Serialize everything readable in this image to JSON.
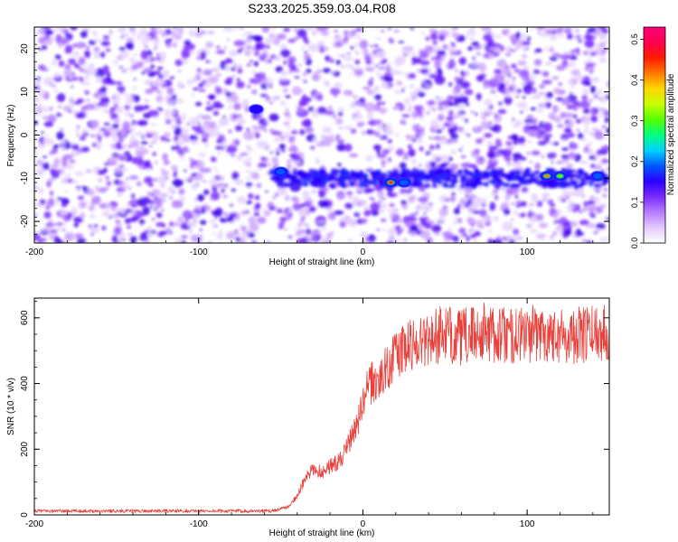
{
  "title": "S233.2025.359.03.04.R08",
  "chart_data": [
    {
      "type": "heatmap",
      "xlabel": "Height of straight line (km)",
      "ylabel": "Frequency (Hz)",
      "xlim": [
        -200,
        150
      ],
      "ylim": [
        -25,
        25
      ],
      "xticks": [
        -200,
        -100,
        0,
        100
      ],
      "yticks": [
        -20,
        -10,
        0,
        10,
        20
      ],
      "colorbar": {
        "label": "Normalized spectral amplitude",
        "range": [
          0.0,
          0.53
        ],
        "ticks": [
          "0.0",
          "0.1",
          "0.2",
          "0.3",
          "0.4",
          "0.5"
        ],
        "colors": [
          "#ffffff",
          "#e3c9ff",
          "#b77cff",
          "#7a2bff",
          "#2a00ff",
          "#0058ff",
          "#00d2ff",
          "#00ff80",
          "#54ff00",
          "#c8ff00",
          "#ffd800",
          "#ff7a00",
          "#ff1a00",
          "#ff0050",
          "#ff007c"
        ]
      },
      "feature": {
        "description_free_values": true,
        "band_frequency_hz": -10,
        "band_start_km": -55,
        "peaks": [
          {
            "x": 17,
            "y": -11,
            "amplitude": 0.5
          },
          {
            "x": 112,
            "y": -9.5,
            "amplitude": 0.48
          },
          {
            "x": 120,
            "y": -9.5,
            "amplitude": 0.32
          },
          {
            "x": 143,
            "y": -9.5,
            "amplitude": 0.22
          },
          {
            "x": 25,
            "y": -11,
            "amplitude": 0.2
          },
          {
            "x": -50,
            "y": -8.5,
            "amplitude": 0.2
          },
          {
            "x": -65,
            "y": 6,
            "amplitude": 0.14
          }
        ]
      }
    },
    {
      "type": "line",
      "xlabel": "Height of straight line (km)",
      "ylabel": "SNR (10 * v/v)",
      "xlim": [
        -200,
        150
      ],
      "ylim": [
        0,
        660
      ],
      "xticks": [
        -200,
        -100,
        0,
        100
      ],
      "yticks": [
        0,
        200,
        400,
        600
      ],
      "color": "#e8413c",
      "series": [
        {
          "name": "SNR",
          "x": [
            -200,
            -150,
            -100,
            -55,
            -45,
            -40,
            -35,
            -30,
            -25,
            -20,
            -15,
            -10,
            -5,
            0,
            2,
            5,
            10,
            15,
            20,
            25,
            30,
            40,
            50,
            60,
            70,
            75,
            80,
            90,
            100,
            110,
            120,
            130,
            140,
            150
          ],
          "y": [
            12,
            12,
            12,
            12,
            25,
            60,
            110,
            140,
            130,
            150,
            160,
            200,
            260,
            330,
            380,
            400,
            410,
            450,
            490,
            500,
            520,
            540,
            550,
            540,
            555,
            560,
            550,
            545,
            550,
            555,
            550,
            545,
            555,
            560
          ]
        }
      ]
    }
  ]
}
